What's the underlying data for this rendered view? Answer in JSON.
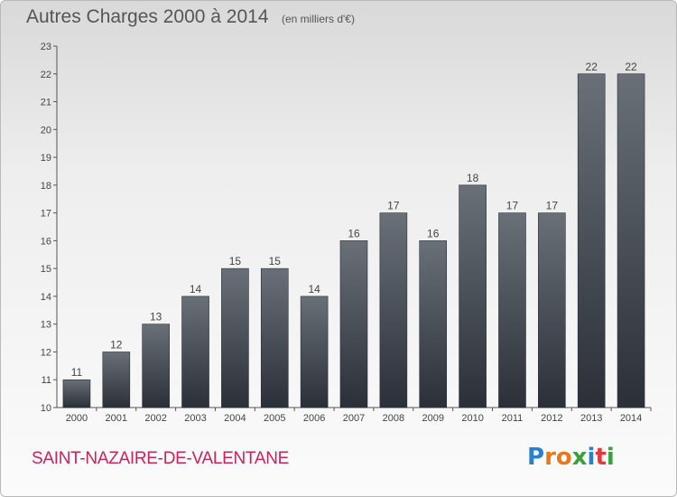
{
  "header": {
    "title": "Autres Charges 2000 à 2014",
    "subtitle": "(en milliers d'€)"
  },
  "footer": {
    "commune": "SAINT-NAZAIRE-DE-VALENTANE",
    "logo_text": "Proxiti",
    "logo_colors": [
      "#2b7fd0",
      "#e9781b",
      "#e9781b",
      "#3aa13a",
      "#2b7fd0",
      "#e23a3a",
      "#3aa13a"
    ]
  },
  "colors": {
    "bar_top": "#6a7078",
    "bar_bottom": "#2b3038",
    "commune": "#c8245a"
  },
  "chart_data": {
    "type": "bar",
    "title": "Autres Charges 2000 à 2014",
    "subtitle": "(en milliers d'€)",
    "categories": [
      "2000",
      "2001",
      "2002",
      "2003",
      "2004",
      "2005",
      "2006",
      "2007",
      "2008",
      "2009",
      "2010",
      "2011",
      "2012",
      "2013",
      "2014"
    ],
    "values": [
      11,
      12,
      13,
      14,
      15,
      15,
      14,
      16,
      17,
      16,
      18,
      17,
      17,
      22,
      22
    ],
    "value_labels": [
      "11",
      "12",
      "13",
      "14",
      "15",
      "15",
      "14",
      "16",
      "17",
      "16",
      "18",
      "17",
      "17",
      "22",
      "22"
    ],
    "ylim": [
      10,
      23
    ],
    "yticks": [
      10,
      11,
      12,
      13,
      14,
      15,
      16,
      17,
      18,
      19,
      20,
      21,
      22,
      23
    ],
    "ytick_labels": [
      "10",
      "11",
      "12",
      "13",
      "14",
      "15",
      "16",
      "17",
      "18",
      "19",
      "20",
      "21",
      "22",
      "23"
    ],
    "grid": false,
    "legend": "none"
  }
}
